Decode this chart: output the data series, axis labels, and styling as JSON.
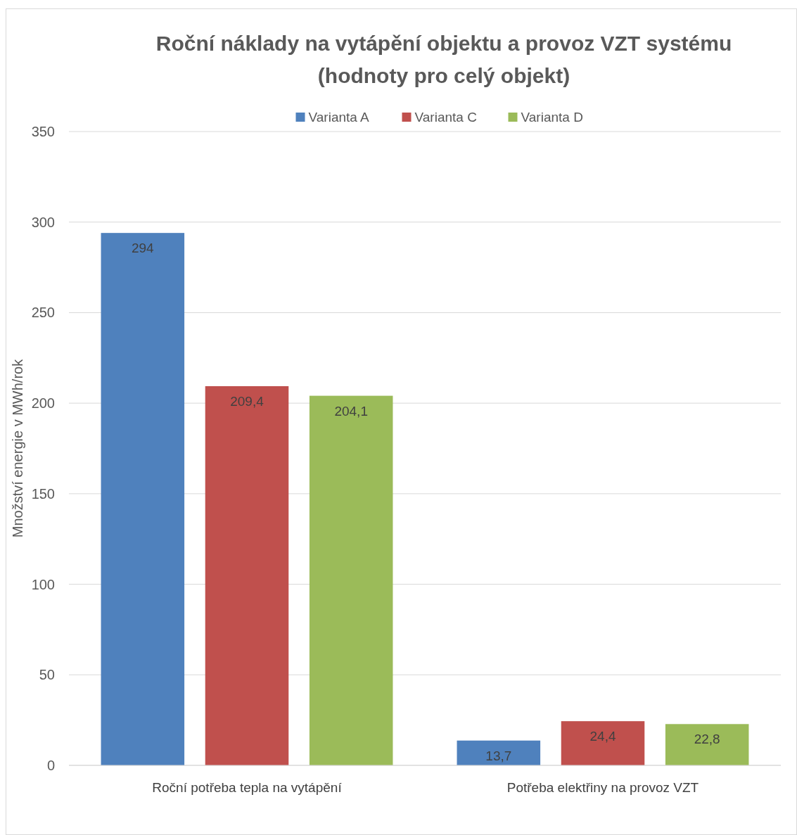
{
  "chart_data": {
    "type": "bar",
    "title": "Roční náklady na vytápění objektu a provoz VZT systému\n(hodnoty pro celý objekt)",
    "ylabel": "Množství energie v MWh/rok",
    "categories": [
      "Roční potřeba tepla na vytápění",
      "Potřeba elektřiny na provoz VZT"
    ],
    "series": [
      {
        "name": "Varianta A",
        "color": "#4f81bd",
        "values": [
          294,
          13.7
        ],
        "value_labels": [
          "294",
          "13,7"
        ]
      },
      {
        "name": "Varianta C",
        "color": "#c0504d",
        "values": [
          209.4,
          24.4
        ],
        "value_labels": [
          "209,4",
          "24,4"
        ]
      },
      {
        "name": "Varianta D",
        "color": "#9bbb59",
        "values": [
          204.1,
          22.8
        ],
        "value_labels": [
          "204,1",
          "22,8"
        ]
      }
    ],
    "ylim": [
      0,
      350
    ],
    "yticks": [
      0,
      50,
      100,
      150,
      200,
      250,
      300,
      350
    ],
    "grid": "y",
    "legend": "top"
  }
}
